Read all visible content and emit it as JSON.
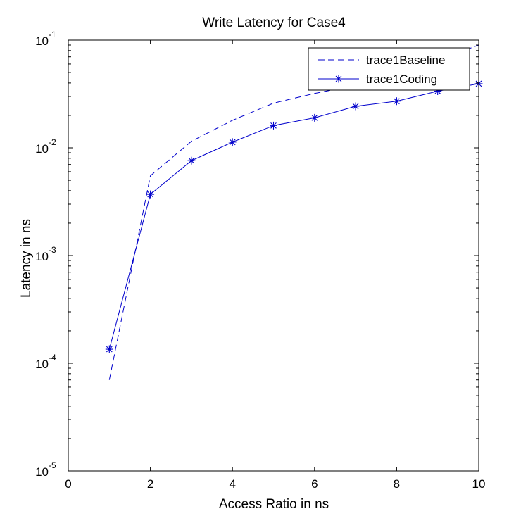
{
  "chart_data": {
    "type": "line",
    "title": "Write Latency for Case4",
    "xlabel": "Access Ratio in ns",
    "ylabel": "Latency in ns",
    "xlim": [
      0,
      10
    ],
    "ylim": [
      1e-05,
      0.1
    ],
    "yscale": "log",
    "grid": false,
    "legend_position": "top-right",
    "x_ticks": [
      0,
      2,
      4,
      6,
      8,
      10
    ],
    "x_tick_labels": [
      "0",
      "2",
      "4",
      "6",
      "8",
      "10"
    ],
    "y_ticks": [
      1e-05,
      0.0001,
      0.001,
      0.01,
      0.1
    ],
    "y_tick_labels": [
      {
        "base": "10",
        "exp": "-5"
      },
      {
        "base": "10",
        "exp": "-4"
      },
      {
        "base": "10",
        "exp": "-3"
      },
      {
        "base": "10",
        "exp": "-2"
      },
      {
        "base": "10",
        "exp": "-1"
      }
    ],
    "series": [
      {
        "name": "trace1Baseline",
        "color": "#0000cc",
        "line_style": "dashed",
        "marker": "none",
        "x": [
          1,
          2,
          3,
          4,
          5,
          6,
          7,
          8,
          9,
          10
        ],
        "y": [
          7e-05,
          0.0055,
          0.0115,
          0.018,
          0.026,
          0.032,
          0.038,
          0.048,
          0.065,
          0.09
        ]
      },
      {
        "name": "trace1Coding",
        "color": "#0000cc",
        "line_style": "solid",
        "marker": "asterisk",
        "x": [
          1,
          2,
          3,
          4,
          5,
          6,
          7,
          8,
          9,
          10
        ],
        "y": [
          0.000135,
          0.0037,
          0.0076,
          0.0113,
          0.0161,
          0.019,
          0.0243,
          0.0271,
          0.0336,
          0.0394
        ]
      }
    ]
  }
}
